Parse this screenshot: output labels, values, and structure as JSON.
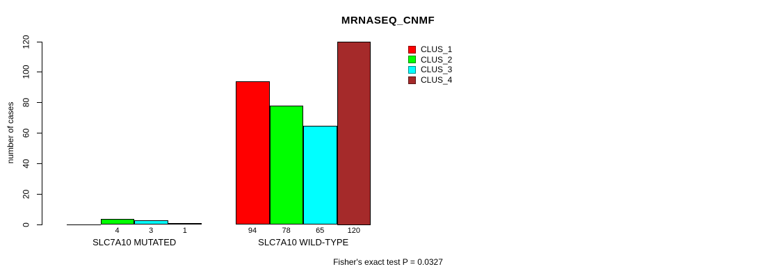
{
  "figure": {
    "title": "MRNASEQ_CNMF",
    "footer": "Fisher's exact test P = 0.0327"
  },
  "chart_data": {
    "type": "bar",
    "title": "MRNASEQ_CNMF",
    "xlabel": "",
    "ylabel": "number of cases",
    "ylim": [
      0,
      120
    ],
    "yticks": [
      0,
      20,
      40,
      60,
      80,
      100,
      120
    ],
    "grid": false,
    "legend_position": "top-right-inside",
    "categories": [
      "SLC7A10 MUTATED",
      "SLC7A10 WILD-TYPE"
    ],
    "series": [
      {
        "name": "CLUS_1",
        "color": "#ff0000",
        "values": [
          0,
          94
        ]
      },
      {
        "name": "CLUS_2",
        "color": "#00ff00",
        "values": [
          4,
          78
        ]
      },
      {
        "name": "CLUS_3",
        "color": "#00ffff",
        "values": [
          3,
          65
        ]
      },
      {
        "name": "CLUS_4",
        "color": "#a52a2a",
        "values": [
          1,
          120
        ]
      }
    ],
    "bar_value_labels": [
      [
        "",
        "4",
        "3",
        "1"
      ],
      [
        "94",
        "78",
        "65",
        "120"
      ]
    ],
    "annotation": "Fisher's exact test P = 0.0327"
  }
}
